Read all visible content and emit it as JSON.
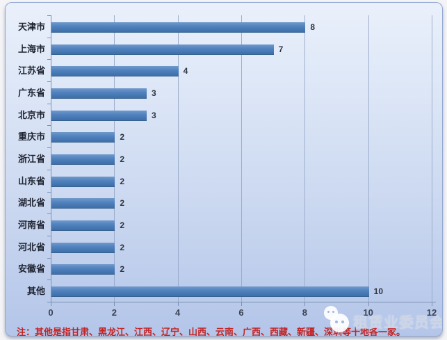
{
  "chart_data": {
    "type": "bar",
    "orientation": "horizontal",
    "title": "",
    "categories": [
      "天津市",
      "上海市",
      "江苏省",
      "广东省",
      "北京市",
      "重庆市",
      "浙江省",
      "山东省",
      "湖北省",
      "河南省",
      "河北省",
      "安徽省",
      "其他"
    ],
    "values": [
      8,
      7,
      4,
      3,
      3,
      2,
      2,
      2,
      2,
      2,
      2,
      2,
      10
    ],
    "x_ticks": [
      0,
      2,
      4,
      6,
      8,
      10,
      12
    ],
    "xlim": [
      0,
      12
    ],
    "xlabel": "",
    "ylabel": "",
    "grid": true,
    "legend": false,
    "data_labels": true,
    "bar_color": "#4f81bd"
  },
  "note": {
    "text": "注：其他是指甘肃、黑龙江、江西、辽宁、山西、云南、广西、西藏、新疆、深圳等十地各一家。",
    "color": "#c32424"
  },
  "watermark": {
    "icon": "wechat-icon",
    "text": "租赁业委员会"
  },
  "colors": {
    "bar": "#4f81bd",
    "chart_bg_top": "#eaf0fb",
    "chart_bg_bottom": "#b3c5e9",
    "gridline": "#95a5c6",
    "frame_border": "#93a9d2"
  }
}
